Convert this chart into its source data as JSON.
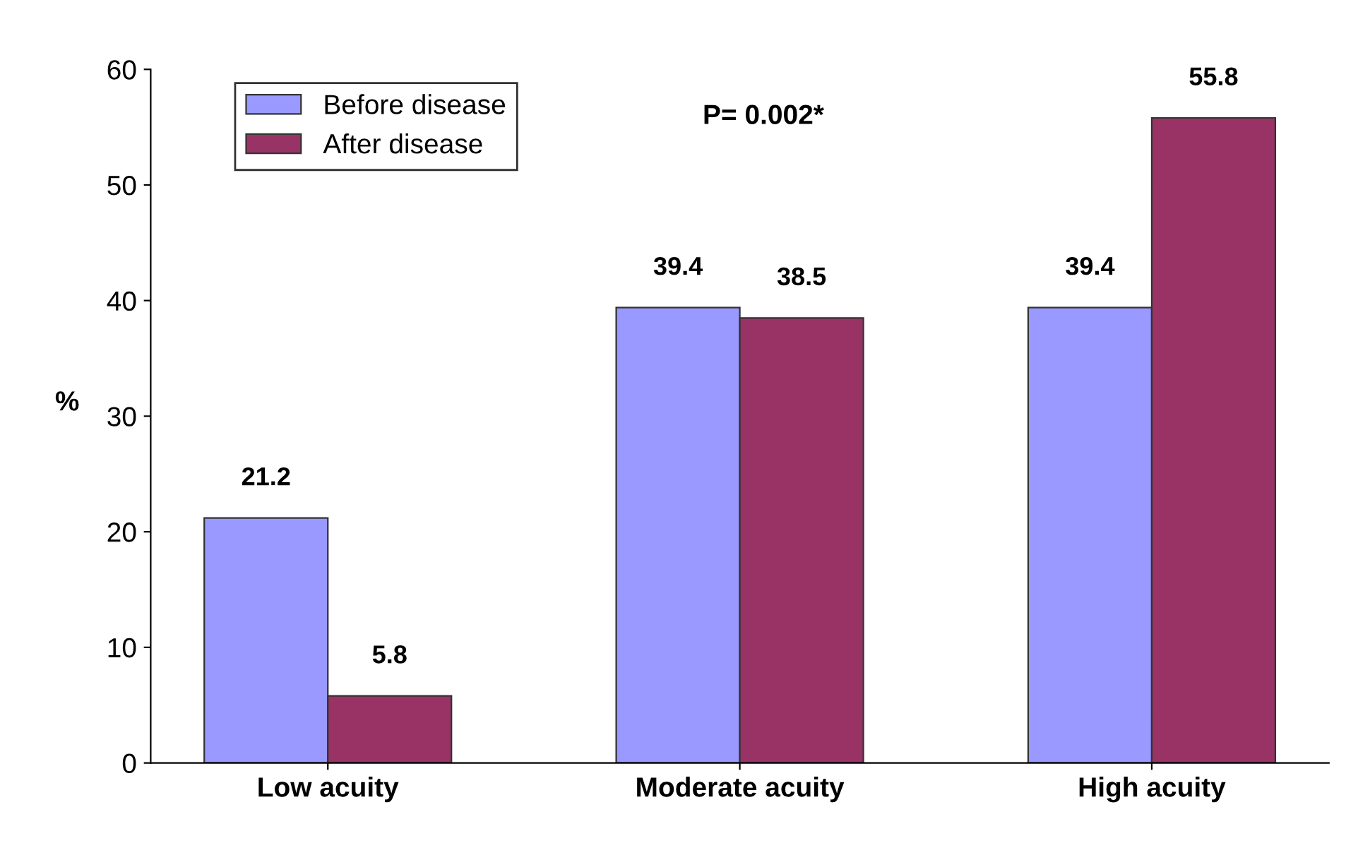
{
  "chart_data": {
    "type": "bar",
    "ylabel": "%",
    "categories": [
      "Low acuity",
      "Moderate acuity",
      "High acuity"
    ],
    "series": [
      {
        "name": "Before disease",
        "color": "#9999ff",
        "values": [
          21.2,
          39.4,
          39.4
        ]
      },
      {
        "name": "After disease",
        "color": "#993366",
        "values": [
          5.8,
          38.5,
          55.8
        ]
      }
    ],
    "ylim": [
      0,
      60
    ],
    "yticks": [
      0,
      10,
      20,
      30,
      40,
      50,
      60
    ],
    "grid": false,
    "legend": "top left",
    "data_labels": true,
    "annotations": [
      "P= 0.002*"
    ]
  }
}
